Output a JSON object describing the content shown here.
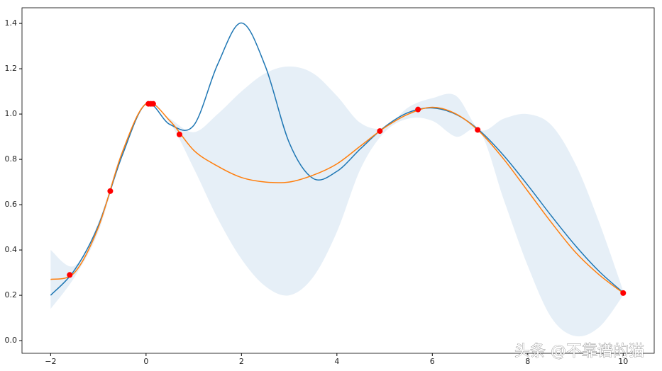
{
  "chart_data": {
    "type": "line",
    "x": [
      -2,
      -1.5,
      -1,
      -0.5,
      0,
      0.5,
      1,
      1.5,
      2,
      2.5,
      3,
      3.5,
      4,
      4.5,
      5,
      5.5,
      6,
      6.5,
      7,
      7.5,
      8,
      8.5,
      9,
      9.5,
      10
    ],
    "series": [
      {
        "color": "#1f77b4",
        "values": [
          0.2,
          0.311,
          0.508,
          0.817,
          1.045,
          0.954,
          0.95,
          1.219,
          1.402,
          1.211,
          0.874,
          0.716,
          0.747,
          0.848,
          0.943,
          1.007,
          1.027,
          0.998,
          0.925,
          0.816,
          0.686,
          0.549,
          0.419,
          0.305,
          0.212
        ]
      },
      {
        "color": "#ff7f0e",
        "values": [
          0.27,
          0.3,
          0.5,
          0.83,
          1.045,
          0.97,
          0.84,
          0.77,
          0.72,
          0.7,
          0.7,
          0.73,
          0.78,
          0.86,
          0.94,
          1.0,
          1.03,
          1.0,
          0.92,
          0.8,
          0.66,
          0.52,
          0.39,
          0.29,
          0.21
        ]
      }
    ],
    "band": {
      "color": "#e6eff7",
      "upper": [
        0.4,
        0.33,
        0.52,
        0.84,
        1.05,
        0.98,
        0.92,
        1.0,
        1.1,
        1.18,
        1.21,
        1.18,
        1.08,
        0.96,
        0.94,
        1.03,
        1.07,
        1.08,
        0.93,
        0.98,
        1.0,
        0.95,
        0.78,
        0.52,
        0.22
      ],
      "lower": [
        0.14,
        0.28,
        0.48,
        0.82,
        1.04,
        0.96,
        0.76,
        0.54,
        0.36,
        0.24,
        0.2,
        0.28,
        0.48,
        0.76,
        0.92,
        0.98,
        0.97,
        0.9,
        0.92,
        0.62,
        0.33,
        0.1,
        0.02,
        0.06,
        0.2
      ]
    },
    "points": {
      "color": "#ff0000",
      "x": [
        -1.6,
        -0.75,
        0.05,
        0.1,
        0.15,
        0.7,
        4.9,
        5.7,
        6.95,
        10
      ],
      "y": [
        0.29,
        0.66,
        1.045,
        1.045,
        1.045,
        0.91,
        0.925,
        1.02,
        0.93,
        0.21
      ]
    },
    "xlim": [
      -2.6,
      10.65
    ],
    "ylim": [
      -0.056,
      1.469
    ],
    "xticks": [
      {
        "value": -2,
        "label": "−2"
      },
      0,
      2,
      4,
      6,
      8,
      10
    ],
    "yticks": [
      {
        "value": 0,
        "label": "0.0"
      },
      {
        "value": 0.2,
        "label": "0.2"
      },
      {
        "value": 0.4,
        "label": "0.4"
      },
      {
        "value": 0.6,
        "label": "0.6"
      },
      {
        "value": 0.8,
        "label": "0.8"
      },
      {
        "value": 1.0,
        "label": "1.0"
      },
      {
        "value": 1.2,
        "label": "1.2"
      },
      {
        "value": 1.4,
        "label": "1.4"
      }
    ],
    "watermark": "头条 @不靠谱的猫"
  }
}
